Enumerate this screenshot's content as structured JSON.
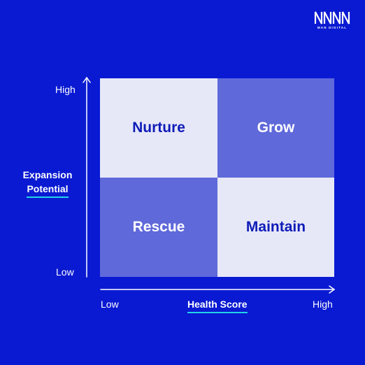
{
  "brand": {
    "logo_text": "MAN DIGITAL"
  },
  "axes": {
    "y": {
      "title_line1": "Expansion",
      "title_line2": "Potential",
      "high_label": "High",
      "low_label": "Low"
    },
    "x": {
      "title": "Health Score",
      "low_label": "Low",
      "high_label": "High"
    }
  },
  "quadrants": {
    "top_left": "Nurture",
    "top_right": "Grow",
    "bottom_left": "Rescue",
    "bottom_right": "Maintain"
  },
  "colors": {
    "background": "#0a1ad2",
    "quadrant_light": "#e7e8f7",
    "quadrant_medium": "#5f69da",
    "accent_underline": "#22d3e6"
  }
}
